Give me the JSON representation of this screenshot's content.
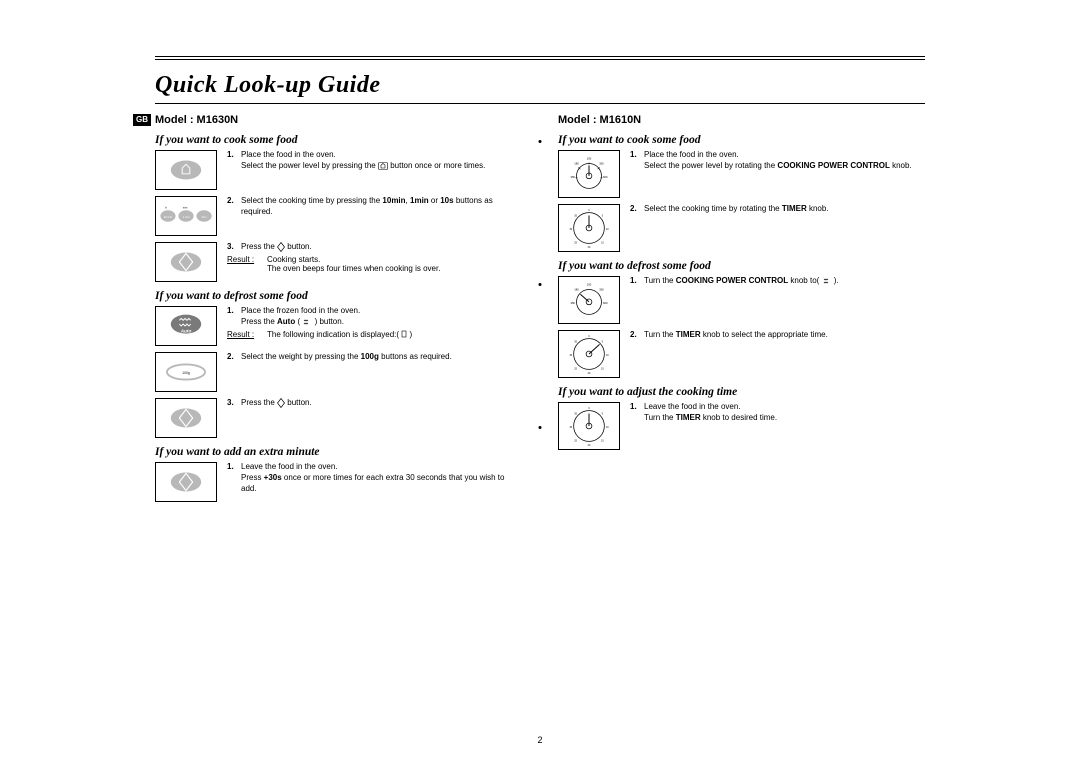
{
  "page": {
    "title": "Quick Look-up Guide",
    "page_number": "2",
    "gb_label": "GB"
  },
  "colors": {
    "text": "#000000",
    "bg": "#ffffff",
    "icon_fill": "#b0b0b0",
    "icon_stroke": "#000000"
  },
  "left": {
    "model": "Model : M1630N",
    "sections": [
      {
        "heading": "If you want to cook some food",
        "steps": [
          {
            "n": "1.",
            "html": "Place the food in the oven.<br>Select the power level by pressing the <svg class='inline-icon' width='10' height='8'><rect x='0.5' y='0.5' width='9' height='7' rx='1' fill='none' stroke='#000' stroke-width='0.6'/><path d='M3 6 L3 3 L5 1.5 L7 3 L7 6 Z' fill='none' stroke='#000' stroke-width='0.6'/></svg> button once or more times."
          },
          {
            "n": "2.",
            "html": "Select the cooking time by pressing the <b>10min</b>, <b>1min</b> or <b>10s</b> buttons as required."
          },
          {
            "n": "3.",
            "html": "Press the <svg class='inline-icon' width='8' height='10'><polygon points='4,0.5 7.5,5 4,9.5 0.5,5' fill='none' stroke='#000' stroke-width='0.7'/></svg> button.",
            "result": {
              "label": "Result :",
              "html": "Cooking starts.<br>The oven beeps four times when cooking is over."
            }
          }
        ]
      },
      {
        "heading": "If you want to defrost some food",
        "steps": [
          {
            "n": "1.",
            "html": "Place the frozen food in the oven.<br>Press the <b>Auto</b> ( <svg class='inline-icon' width='10' height='8'><path d='M2 3 l1 -1 l1 1 l1 -1 l1 1' fill='none' stroke='#000' stroke-width='0.7'/><path d='M2 5 l1 1 l1 -1 l1 1 l1 -1' fill='none' stroke='#000' stroke-width='0.7'/></svg> ) button.",
            "result": {
              "label": "Result :",
              "html": "The following indication is displayed:( <svg class='inline-icon' width='6' height='8'><rect x='1' y='1' width='4' height='6' fill='none' stroke='#000' stroke-width='0.6'/></svg> )"
            }
          },
          {
            "n": "2.",
            "html": "Select the weight by pressing the <b>100g</b> buttons as required."
          },
          {
            "n": "3.",
            "html": "Press the <svg class='inline-icon' width='8' height='10'><polygon points='4,0.5 7.5,5 4,9.5 0.5,5' fill='none' stroke='#000' stroke-width='0.7'/></svg> button."
          }
        ]
      },
      {
        "heading": "If you want to add an extra minute",
        "steps": [
          {
            "n": "1.",
            "html": "Leave the food in the oven.<br>Press <b>+30s</b> once or more times for each extra 30 seconds that you wish to add."
          }
        ]
      }
    ]
  },
  "right": {
    "model": "Model : M1610N",
    "sections": [
      {
        "heading": "If you want to cook some food",
        "steps": [
          {
            "n": "1.",
            "html": "Place the food in the oven.<br>Select the power level by rotating the <b>COOKING POWER CONTROL</b> knob."
          },
          {
            "n": "2.",
            "html": "Select the cooking time by rotating the <b>TIMER</b> knob."
          }
        ]
      },
      {
        "heading": "If you want to defrost some food",
        "steps": [
          {
            "n": "1.",
            "html": "Turn the <b>COOKING POWER CONTROL</b> knob to( <svg class='inline-icon' width='10' height='8'><path d='M2 3 l1 -1 l1 1 l1 -1 l1 1' fill='none' stroke='#000' stroke-width='0.7'/><path d='M2 5 l1 1 l1 -1 l1 1 l1 -1' fill='none' stroke='#000' stroke-width='0.7'/></svg> )."
          },
          {
            "n": "2.",
            "html": "Turn the <b>TIMER</b> knob to select the appropriate time."
          }
        ]
      },
      {
        "heading": "If you want to adjust the cooking time",
        "steps": [
          {
            "n": "1.",
            "html": "Leave the food in the oven.<br>Turn the <b>TIMER</b> knob to desired time."
          }
        ]
      }
    ]
  },
  "icons": {
    "left": [
      "power-button",
      "time-buttons",
      "diamond-start",
      "auto-defrost",
      "weight-100g",
      "diamond-start",
      "diamond-start"
    ],
    "right": [
      "power-dial",
      "timer-dial",
      "power-dial",
      "timer-dial",
      "timer-dial"
    ]
  }
}
